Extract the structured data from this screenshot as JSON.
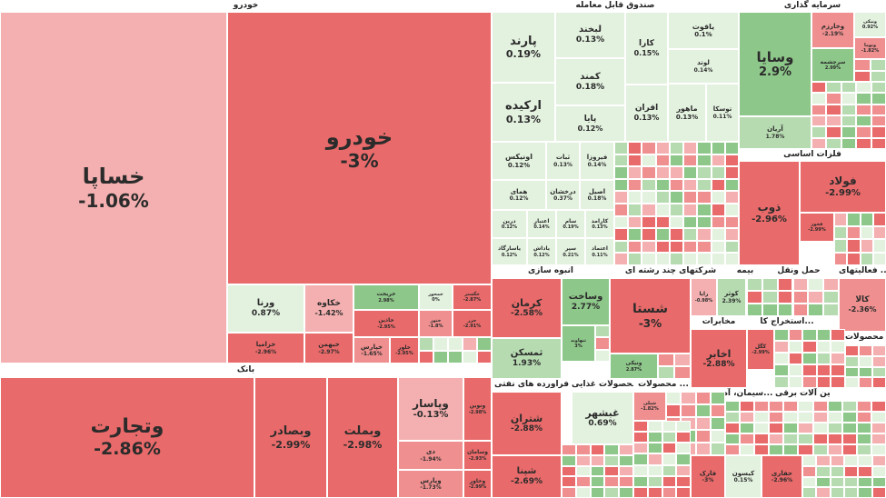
{
  "chart_data": {
    "type": "heatmap",
    "colors": {
      "neg_strong": "#e96a6a",
      "neg_mid": "#ef8f8f",
      "neg_light": "#f4b0b0",
      "pos_strong": "#8ec78a",
      "pos_mid": "#b6dbb1",
      "pos_light": "#e3f1df"
    },
    "sectors": [
      {
        "name": "خودرو"
      },
      {
        "name": "بانک"
      },
      {
        "name": "صندوق قابل معامله"
      },
      {
        "name": "سرمایه گذاری"
      },
      {
        "name": "فلزات اساسی"
      },
      {
        "name": "انبوه سازی"
      },
      {
        "name": "شرکتهای چند رشته ای"
      },
      {
        "name": "بیمه"
      },
      {
        "name": "حمل ونقل"
      },
      {
        "name": "فعالیتهای ..."
      },
      {
        "name": "مخابرات"
      },
      {
        "name": "استخراج کا..."
      },
      {
        "name": "زراعت"
      },
      {
        "name": "محصولات ..."
      },
      {
        "name": "فراورده های نفتی"
      },
      {
        "name": "محصولات غذایی"
      },
      {
        "name": "محصولات ..."
      },
      {
        "name": "ماشین آلات برقی"
      },
      {
        "name": "سیمان، آه..."
      }
    ],
    "tiles": [
      {
        "symbol": "خساپا",
        "change": -1.06
      },
      {
        "symbol": "خودرو",
        "change": -3
      },
      {
        "symbol": "ورنا",
        "change": 0.87
      },
      {
        "symbol": "خکاوه",
        "change": -1.42
      },
      {
        "symbol": "خزامیا",
        "change": -2.96
      },
      {
        "symbol": "خبهمن",
        "change": -2.97
      },
      {
        "symbol": "خریخت",
        "change": 2.98
      },
      {
        "symbol": "خمحور",
        "change": 0
      },
      {
        "symbol": "خگستر",
        "change": -2.87
      },
      {
        "symbol": "خزر",
        "change": -2.91
      },
      {
        "symbol": "ختور",
        "change": -1.8
      },
      {
        "symbol": "خاذین",
        "change": -2.95
      },
      {
        "symbol": "خپارس",
        "change": -1.65
      },
      {
        "symbol": "خلور",
        "change": -2.95
      },
      {
        "symbol": "وتجارت",
        "change": -2.86
      },
      {
        "symbol": "وبصادر",
        "change": -2.99
      },
      {
        "symbol": "وبملت",
        "change": -2.98
      },
      {
        "symbol": "وپاسار",
        "change": -0.13
      },
      {
        "symbol": "ونوین",
        "change": -2.98
      },
      {
        "symbol": "دی",
        "change": -1.94
      },
      {
        "symbol": "وسامان",
        "change": -2.93
      },
      {
        "symbol": "وپارس",
        "change": -1.73
      },
      {
        "symbol": "وخاور",
        "change": -2.99
      },
      {
        "symbol": "پارند",
        "change": 0.19
      },
      {
        "symbol": "لبخند",
        "change": 0.13
      },
      {
        "symbol": "کارا",
        "change": 0.15
      },
      {
        "symbol": "یاقوت",
        "change": 0.1
      },
      {
        "symbol": "لوتد",
        "change": 0.14
      },
      {
        "symbol": "کمند",
        "change": 0.18
      },
      {
        "symbol": "ارکیده",
        "change": 0.13
      },
      {
        "symbol": "پایا",
        "change": 0.12
      },
      {
        "symbol": "افران",
        "change": 0.13
      },
      {
        "symbol": "ماهور",
        "change": 0.13
      },
      {
        "symbol": "توسکا",
        "change": 0.11
      },
      {
        "symbol": "اونیکس",
        "change": 0.12
      },
      {
        "symbol": "ثبات",
        "change": 0.13
      },
      {
        "symbol": "فیروزا",
        "change": 0.14
      },
      {
        "symbol": "همای",
        "change": 0.12
      },
      {
        "symbol": "درخشان",
        "change": 0.37
      },
      {
        "symbol": "اصیل",
        "change": 0.18
      },
      {
        "symbol": "درین",
        "change": 0.12
      },
      {
        "symbol": "اعتبار",
        "change": 0.14
      },
      {
        "symbol": "سام",
        "change": 0.19
      },
      {
        "symbol": "کارامد",
        "change": 0.13
      },
      {
        "symbol": "یاسارگاد",
        "change": 0.12
      },
      {
        "symbol": "یاداش",
        "change": 0.12
      },
      {
        "symbol": "سپر",
        "change": 0.21
      },
      {
        "symbol": "اعتماد",
        "change": 0.11
      },
      {
        "symbol": "وسایا",
        "change": 2.9
      },
      {
        "symbol": "ونیکی",
        "change": 0.92
      },
      {
        "symbol": "وخارزم",
        "change": -2.19
      },
      {
        "symbol": "ونوما",
        "change": -1.82
      },
      {
        "symbol": "سرچشمه",
        "change": 2.99
      },
      {
        "symbol": "آریان",
        "change": 1.78
      },
      {
        "symbol": "فولاد",
        "change": -2.99
      },
      {
        "symbol": "ذوب",
        "change": -2.96
      },
      {
        "symbol": "فخوز",
        "change": -2.99
      },
      {
        "symbol": "کرمان",
        "change": -2.58
      },
      {
        "symbol": "وساخت",
        "change": 2.77
      },
      {
        "symbol": "ثمسکن",
        "change": 1.93
      },
      {
        "symbol": "شستا",
        "change": -3
      },
      {
        "symbol": "ونیکی",
        "change": 2.87
      },
      {
        "symbol": "ثنهاوند",
        "change": 3
      },
      {
        "symbol": "رایا",
        "change": -0.98
      },
      {
        "symbol": "کوثر",
        "change": 2.39
      },
      {
        "symbol": "کالا",
        "change": -2.36
      },
      {
        "symbol": "اخابر",
        "change": -2.88
      },
      {
        "symbol": "کگل",
        "change": -2.99
      },
      {
        "symbol": "شتران",
        "change": -2.88
      },
      {
        "symbol": "شپنا",
        "change": -2.69
      },
      {
        "symbol": "غبشهر",
        "change": 0.69
      },
      {
        "symbol": "شپلی",
        "change": -1.82
      },
      {
        "symbol": "فارک",
        "change": -3
      },
      {
        "symbol": "کیسون",
        "change": 0.15
      },
      {
        "symbol": "حفاری",
        "change": -2.96
      }
    ]
  }
}
